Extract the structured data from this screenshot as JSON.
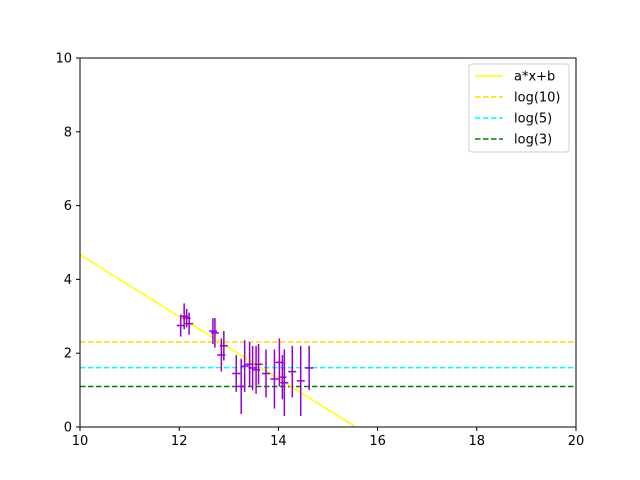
{
  "chart_data": {
    "type": "scatter",
    "title": "",
    "xlabel": "",
    "ylabel": "",
    "xlim": [
      10,
      20
    ],
    "ylim": [
      0,
      10
    ],
    "grid": false,
    "legend_position": "top-right",
    "x_ticks": [
      "10",
      "12",
      "14",
      "16",
      "18",
      "20"
    ],
    "y_ticks": [
      "0",
      "2",
      "4",
      "6",
      "8",
      "10"
    ],
    "fit_line": {
      "name": "a*x+b",
      "color": "#ffff00",
      "style": "solid",
      "x": [
        10,
        15.56
      ],
      "y": [
        4.67,
        0
      ]
    },
    "hlines": [
      {
        "name": "log(10)",
        "value": 2.303,
        "color": "#ffd700",
        "style": "dashed"
      },
      {
        "name": "log(5)",
        "value": 1.609,
        "color": "#00ffff",
        "style": "dashed"
      },
      {
        "name": "log(3)",
        "value": 1.099,
        "color": "#008000",
        "style": "dashed"
      }
    ],
    "errorbar_series": {
      "color": "#9400d3",
      "points": [
        {
          "x": 12.03,
          "y": 2.75,
          "err": 0.3
        },
        {
          "x": 12.1,
          "y": 3.0,
          "err": 0.35
        },
        {
          "x": 12.15,
          "y": 2.95,
          "err": 0.25
        },
        {
          "x": 12.2,
          "y": 2.8,
          "err": 0.3
        },
        {
          "x": 12.68,
          "y": 2.6,
          "err": 0.35
        },
        {
          "x": 12.72,
          "y": 2.55,
          "err": 0.4
        },
        {
          "x": 12.85,
          "y": 1.95,
          "err": 0.45
        },
        {
          "x": 12.9,
          "y": 2.2,
          "err": 0.4
        },
        {
          "x": 13.15,
          "y": 1.45,
          "err": 0.5
        },
        {
          "x": 13.25,
          "y": 1.1,
          "err": 0.75
        },
        {
          "x": 13.32,
          "y": 1.65,
          "err": 0.7
        },
        {
          "x": 13.42,
          "y": 1.7,
          "err": 0.6
        },
        {
          "x": 13.48,
          "y": 1.6,
          "err": 0.6
        },
        {
          "x": 13.55,
          "y": 1.55,
          "err": 0.65
        },
        {
          "x": 13.6,
          "y": 1.7,
          "err": 0.55
        },
        {
          "x": 13.75,
          "y": 1.45,
          "err": 0.65
        },
        {
          "x": 13.92,
          "y": 1.3,
          "err": 0.8
        },
        {
          "x": 14.02,
          "y": 1.75,
          "err": 0.65
        },
        {
          "x": 14.08,
          "y": 1.35,
          "err": 0.6
        },
        {
          "x": 14.12,
          "y": 1.2,
          "err": 0.9
        },
        {
          "x": 14.28,
          "y": 1.5,
          "err": 0.7
        },
        {
          "x": 14.45,
          "y": 1.25,
          "err": 0.95
        },
        {
          "x": 14.62,
          "y": 1.6,
          "err": 0.6
        }
      ]
    }
  }
}
